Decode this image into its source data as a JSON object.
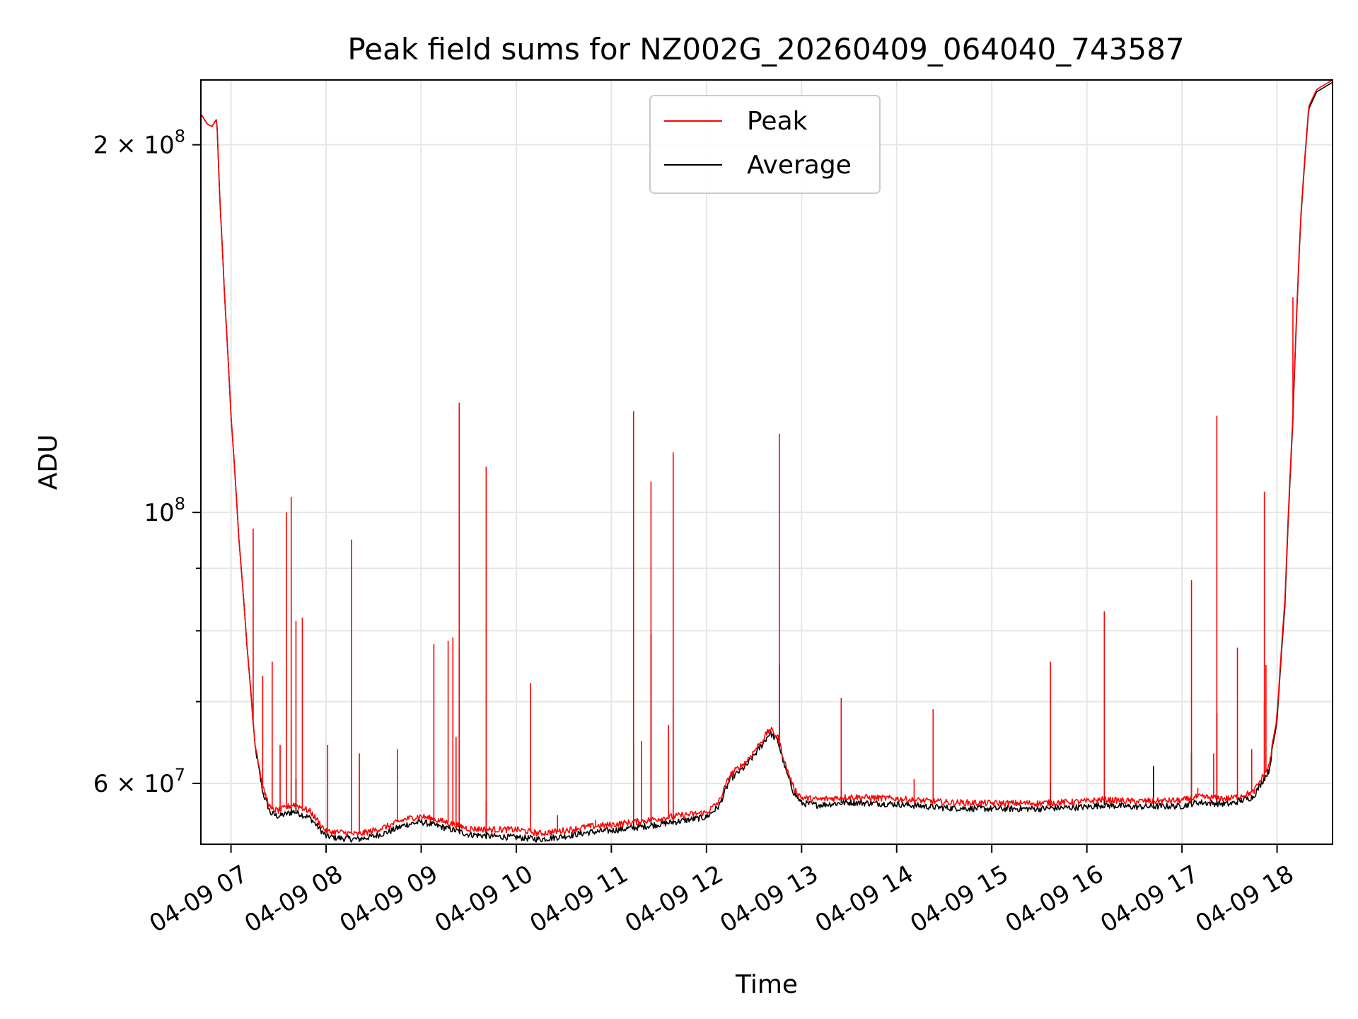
{
  "chart_data": {
    "type": "line",
    "title": "Peak field sums for NZ002G_20260409_064040_743587",
    "xlabel": "Time",
    "ylabel": "ADU",
    "yscale": "log",
    "xlim": [
      "04-09 06:41",
      "04-09 18:35"
    ],
    "ylim": [
      53500000,
      226000000
    ],
    "grid": true,
    "legend_position": "upper-center",
    "x_ticks": [
      "04-09 07",
      "04-09 08",
      "04-09 09",
      "04-09 10",
      "04-09 11",
      "04-09 12",
      "04-09 13",
      "04-09 14",
      "04-09 15",
      "04-09 16",
      "04-09 17",
      "04-09 18"
    ],
    "x_tick_times": [
      "04-09 07:00",
      "04-09 08:00",
      "04-09 09:00",
      "04-09 10:00",
      "04-09 11:00",
      "04-09 12:00",
      "04-09 13:00",
      "04-09 14:00",
      "04-09 15:00",
      "04-09 16:00",
      "04-09 17:00",
      "04-09 18:00"
    ],
    "y_major_ticks": [
      {
        "value": 100000000,
        "mantissa": "",
        "exponent": "8"
      },
      {
        "value": 200000000,
        "mantissa": "2",
        "exponent": "8"
      },
      {
        "value": 60000000,
        "mantissa": "6",
        "exponent": "7"
      }
    ],
    "y_minor_ticks": [
      70000000,
      80000000,
      90000000
    ],
    "series": [
      {
        "name": "Peak",
        "color": "#ff0000",
        "baseline": [
          [
            "04-09 06:41",
            212000000
          ],
          [
            "04-09 06:45",
            208000000
          ],
          [
            "04-09 06:48",
            207000000
          ],
          [
            "04-09 06:51",
            210000000
          ],
          [
            "04-09 06:53",
            180000000
          ],
          [
            "04-09 06:56",
            150000000
          ],
          [
            "04-09 07:00",
            120000000
          ],
          [
            "04-09 07:05",
            95000000
          ],
          [
            "04-09 07:10",
            78000000
          ],
          [
            "04-09 07:15",
            65000000
          ],
          [
            "04-09 07:20",
            59500000
          ],
          [
            "04-09 07:25",
            57200000
          ],
          [
            "04-09 07:30",
            57000000
          ],
          [
            "04-09 07:40",
            57700000
          ],
          [
            "04-09 07:50",
            56900000
          ],
          [
            "04-09 08:00",
            54800000
          ],
          [
            "04-09 08:10",
            54700000
          ],
          [
            "04-09 08:20",
            54500000
          ],
          [
            "04-09 08:30",
            54900000
          ],
          [
            "04-09 08:40",
            55400000
          ],
          [
            "04-09 08:50",
            56100000
          ],
          [
            "04-09 09:00",
            56400000
          ],
          [
            "04-09 09:15",
            55800000
          ],
          [
            "04-09 09:30",
            55100000
          ],
          [
            "04-09 09:45",
            55000000
          ],
          [
            "04-09 10:00",
            55000000
          ],
          [
            "04-09 10:15",
            54600000
          ],
          [
            "04-09 10:30",
            54900000
          ],
          [
            "04-09 10:45",
            55300000
          ],
          [
            "04-09 11:00",
            55500000
          ],
          [
            "04-09 11:20",
            55900000
          ],
          [
            "04-09 11:40",
            56400000
          ],
          [
            "04-09 12:00",
            56800000
          ],
          [
            "04-09 12:08",
            58000000
          ],
          [
            "04-09 12:15",
            61000000
          ],
          [
            "04-09 12:25",
            62500000
          ],
          [
            "04-09 12:35",
            65000000
          ],
          [
            "04-09 12:40",
            66500000
          ],
          [
            "04-09 12:45",
            65500000
          ],
          [
            "04-09 12:50",
            62000000
          ],
          [
            "04-09 12:55",
            59500000
          ],
          [
            "04-09 13:00",
            58400000
          ],
          [
            "04-09 13:10",
            58200000
          ],
          [
            "04-09 13:30",
            58500000
          ],
          [
            "04-09 14:00",
            58300000
          ],
          [
            "04-09 14:30",
            57900000
          ],
          [
            "04-09 15:00",
            57800000
          ],
          [
            "04-09 15:30",
            57800000
          ],
          [
            "04-09 16:00",
            58000000
          ],
          [
            "04-09 16:10",
            58200000
          ],
          [
            "04-09 16:30",
            58000000
          ],
          [
            "04-09 17:00",
            58100000
          ],
          [
            "04-09 17:10",
            58500000
          ],
          [
            "04-09 17:30",
            58300000
          ],
          [
            "04-09 17:45",
            59000000
          ],
          [
            "04-09 17:55",
            62000000
          ],
          [
            "04-09 18:00",
            68000000
          ],
          [
            "04-09 18:05",
            85000000
          ],
          [
            "04-09 18:10",
            120000000
          ],
          [
            "04-09 18:15",
            175000000
          ],
          [
            "04-09 18:20",
            215000000
          ],
          [
            "04-09 18:25",
            222000000
          ],
          [
            "04-09 18:30",
            224000000
          ],
          [
            "04-09 18:35",
            226000000
          ]
        ],
        "spikes": [
          [
            "04-09 07:14",
            97000000
          ],
          [
            "04-09 07:20",
            73500000
          ],
          [
            "04-09 07:26",
            75500000
          ],
          [
            "04-09 07:31",
            64500000
          ],
          [
            "04-09 07:35",
            100000000
          ],
          [
            "04-09 07:38",
            103000000
          ],
          [
            "04-09 07:41",
            81500000
          ],
          [
            "04-09 07:45",
            82000000
          ],
          [
            "04-09 08:01",
            64500000
          ],
          [
            "04-09 08:16",
            95000000
          ],
          [
            "04-09 08:21",
            63500000
          ],
          [
            "04-09 08:45",
            64000000
          ],
          [
            "04-09 09:08",
            78000000
          ],
          [
            "04-09 09:17",
            78500000
          ],
          [
            "04-09 09:20",
            79000000
          ],
          [
            "04-09 09:22",
            65500000
          ],
          [
            "04-09 09:24",
            123000000
          ],
          [
            "04-09 09:41",
            109000000
          ],
          [
            "04-09 10:09",
            72500000
          ],
          [
            "04-09 10:26",
            56500000
          ],
          [
            "04-09 10:50",
            56000000
          ],
          [
            "04-09 11:14",
            121000000
          ],
          [
            "04-09 11:19",
            65000000
          ],
          [
            "04-09 11:25",
            106000000
          ],
          [
            "04-09 11:36",
            67000000
          ],
          [
            "04-09 11:39",
            112000000
          ],
          [
            "04-09 12:17",
            60500000
          ],
          [
            "04-09 12:46",
            116000000
          ],
          [
            "04-09 13:25",
            70500000
          ],
          [
            "04-09 14:11",
            60500000
          ],
          [
            "04-09 14:23",
            69000000
          ],
          [
            "04-09 15:37",
            75500000
          ],
          [
            "04-09 16:11",
            83000000
          ],
          [
            "04-09 17:06",
            88000000
          ],
          [
            "04-09 17:10",
            59500000
          ],
          [
            "04-09 17:20",
            63500000
          ],
          [
            "04-09 17:22",
            120000000
          ],
          [
            "04-09 17:35",
            77500000
          ],
          [
            "04-09 17:44",
            64000000
          ],
          [
            "04-09 17:52",
            104000000
          ],
          [
            "04-09 17:53",
            75000000
          ],
          [
            "04-09 18:10",
            150000000
          ]
        ]
      },
      {
        "name": "Average",
        "color": "#000000",
        "baseline": [
          [
            "04-09 06:41",
            212000000
          ],
          [
            "04-09 06:45",
            208000000
          ],
          [
            "04-09 06:48",
            207000000
          ],
          [
            "04-09 06:51",
            210000000
          ],
          [
            "04-09 06:53",
            180000000
          ],
          [
            "04-09 06:56",
            150000000
          ],
          [
            "04-09 07:00",
            120000000
          ],
          [
            "04-09 07:05",
            95000000
          ],
          [
            "04-09 07:10",
            78000000
          ],
          [
            "04-09 07:15",
            64500000
          ],
          [
            "04-09 07:20",
            59000000
          ],
          [
            "04-09 07:25",
            56700000
          ],
          [
            "04-09 07:30",
            56400000
          ],
          [
            "04-09 07:40",
            56900000
          ],
          [
            "04-09 07:50",
            56200000
          ],
          [
            "04-09 08:00",
            54300000
          ],
          [
            "04-09 08:10",
            54100000
          ],
          [
            "04-09 08:20",
            54000000
          ],
          [
            "04-09 08:30",
            54300000
          ],
          [
            "04-09 08:40",
            54800000
          ],
          [
            "04-09 08:50",
            55500000
          ],
          [
            "04-09 09:00",
            55800000
          ],
          [
            "04-09 09:15",
            55200000
          ],
          [
            "04-09 09:30",
            54500000
          ],
          [
            "04-09 09:45",
            54300000
          ],
          [
            "04-09 10:00",
            54200000
          ],
          [
            "04-09 10:15",
            54000000
          ],
          [
            "04-09 10:30",
            54300000
          ],
          [
            "04-09 10:45",
            54700000
          ],
          [
            "04-09 11:00",
            54900000
          ],
          [
            "04-09 11:20",
            55300000
          ],
          [
            "04-09 11:40",
            55800000
          ],
          [
            "04-09 12:00",
            56300000
          ],
          [
            "04-09 12:08",
            57500000
          ],
          [
            "04-09 12:15",
            60500000
          ],
          [
            "04-09 12:25",
            62000000
          ],
          [
            "04-09 12:35",
            64500000
          ],
          [
            "04-09 12:40",
            66000000
          ],
          [
            "04-09 12:45",
            65000000
          ],
          [
            "04-09 12:50",
            61500000
          ],
          [
            "04-09 12:55",
            59000000
          ],
          [
            "04-09 13:00",
            57800000
          ],
          [
            "04-09 13:10",
            57600000
          ],
          [
            "04-09 13:30",
            57900000
          ],
          [
            "04-09 14:00",
            57700000
          ],
          [
            "04-09 14:30",
            57300000
          ],
          [
            "04-09 15:00",
            57200000
          ],
          [
            "04-09 15:30",
            57200000
          ],
          [
            "04-09 16:00",
            57400000
          ],
          [
            "04-09 16:10",
            57600000
          ],
          [
            "04-09 16:30",
            57400000
          ],
          [
            "04-09 17:00",
            57500000
          ],
          [
            "04-09 17:10",
            57900000
          ],
          [
            "04-09 17:30",
            57700000
          ],
          [
            "04-09 17:45",
            58500000
          ],
          [
            "04-09 17:55",
            61500000
          ],
          [
            "04-09 18:00",
            67500000
          ],
          [
            "04-09 18:05",
            84000000
          ],
          [
            "04-09 18:10",
            119000000
          ],
          [
            "04-09 18:15",
            174000000
          ],
          [
            "04-09 18:20",
            214000000
          ],
          [
            "04-09 18:25",
            221000000
          ],
          [
            "04-09 18:30",
            223000000
          ],
          [
            "04-09 18:35",
            225000000
          ]
        ],
        "spikes": [
          [
            "04-09 07:38",
            67500000
          ],
          [
            "04-09 07:41",
            60500000
          ],
          [
            "04-09 09:24",
            77500000
          ],
          [
            "04-09 09:41",
            58000000
          ],
          [
            "04-09 11:14",
            64500000
          ],
          [
            "04-09 11:25",
            79500000
          ],
          [
            "04-09 11:39",
            69500000
          ],
          [
            "04-09 12:46",
            75000000
          ],
          [
            "04-09 13:25",
            59500000
          ],
          [
            "04-09 15:37",
            60000000
          ],
          [
            "04-09 16:11",
            58500000
          ],
          [
            "04-09 16:42",
            62000000
          ],
          [
            "04-09 17:06",
            63500000
          ],
          [
            "04-09 17:22",
            68500000
          ],
          [
            "04-09 17:52",
            70000000
          ]
        ]
      }
    ]
  }
}
